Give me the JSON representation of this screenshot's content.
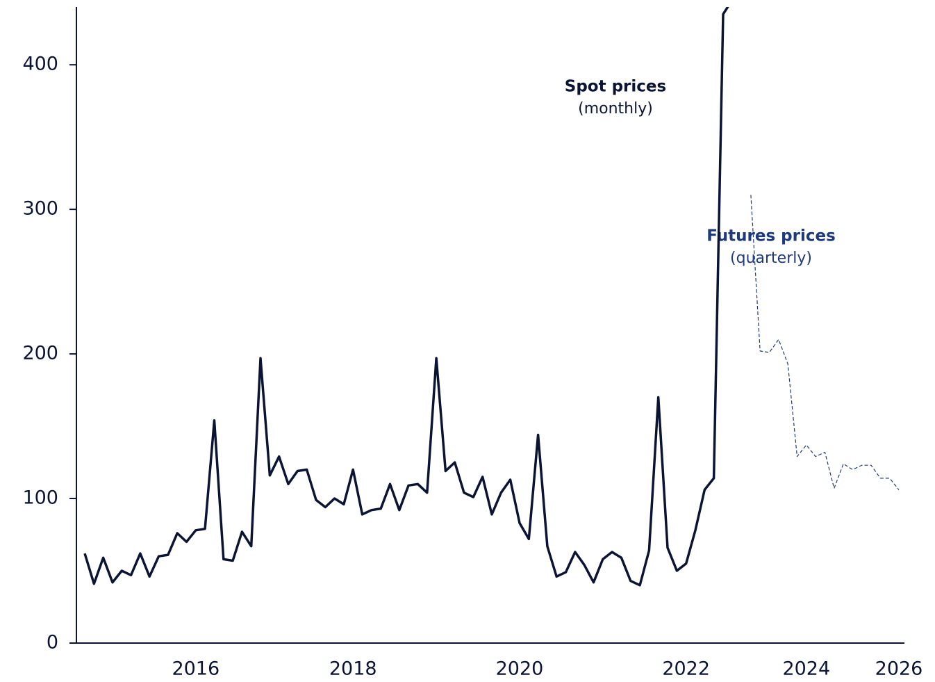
{
  "chart_data": {
    "type": "line",
    "categories": [
      null,
      null,
      null,
      null,
      null,
      null,
      null,
      null,
      null,
      null,
      null,
      null,
      "2016",
      null,
      null,
      null,
      null,
      null,
      null,
      null,
      null,
      null,
      null,
      null,
      null,
      null,
      null,
      null,
      null,
      "2018",
      null,
      null,
      null,
      null,
      null,
      null,
      null,
      null,
      null,
      null,
      null,
      null,
      null,
      null,
      null,
      null,
      null,
      "2020",
      null,
      null,
      null,
      null,
      null,
      null,
      null,
      null,
      null,
      null,
      null,
      null,
      null,
      null,
      null,
      null,
      null,
      "2022",
      null,
      null,
      null,
      null,
      null,
      null,
      null,
      null,
      null,
      null,
      null,
      null,
      "2024",
      null,
      null,
      null,
      null,
      null,
      null,
      null,
      null,
      null,
      "2026"
    ],
    "series": [
      {
        "name": "Spot prices",
        "color": "#0b1533",
        "dashed": false,
        "values": [
          62,
          41,
          59,
          42,
          50,
          47,
          62,
          46,
          60,
          61,
          76,
          70,
          78,
          79,
          154,
          58,
          57,
          77,
          67,
          197,
          116,
          129,
          110,
          119,
          120,
          99,
          94,
          100,
          96,
          120,
          89,
          92,
          93,
          110,
          92,
          109,
          110,
          104,
          197,
          119,
          125,
          104,
          101,
          115,
          89,
          104,
          113,
          83,
          72,
          144,
          67,
          46,
          49,
          63,
          54,
          42,
          58,
          63,
          59,
          43,
          40,
          64,
          170,
          66,
          50,
          55,
          78,
          106,
          114,
          435,
          445,
          null,
          null,
          null,
          null,
          null,
          null,
          null,
          null,
          null,
          null,
          null,
          null,
          null,
          null,
          null,
          null,
          null,
          null
        ]
      },
      {
        "name": "Futures prices",
        "color": "#1f3a7a",
        "dashed": true,
        "values": [
          null,
          null,
          null,
          null,
          null,
          null,
          null,
          null,
          null,
          null,
          null,
          null,
          null,
          null,
          null,
          null,
          null,
          null,
          null,
          null,
          null,
          null,
          null,
          null,
          null,
          null,
          null,
          null,
          null,
          null,
          null,
          null,
          null,
          null,
          null,
          null,
          null,
          null,
          null,
          null,
          null,
          null,
          null,
          null,
          null,
          null,
          null,
          null,
          null,
          null,
          null,
          null,
          null,
          null,
          null,
          null,
          null,
          null,
          null,
          null,
          null,
          null,
          null,
          null,
          null,
          null,
          null,
          null,
          null,
          null,
          null,
          null,
          310,
          202,
          201,
          210,
          193,
          129,
          137,
          129,
          132,
          107,
          124,
          120,
          123,
          123,
          114,
          114,
          106
        ]
      }
    ],
    "annotations": [
      {
        "title": "Spot prices",
        "note": "(monthly)"
      },
      {
        "title": "Futures prices",
        "note": "(quarterly)"
      }
    ],
    "ylim": [
      0,
      440
    ],
    "yticks": [
      0,
      100,
      200,
      300,
      400
    ],
    "grid": false
  }
}
